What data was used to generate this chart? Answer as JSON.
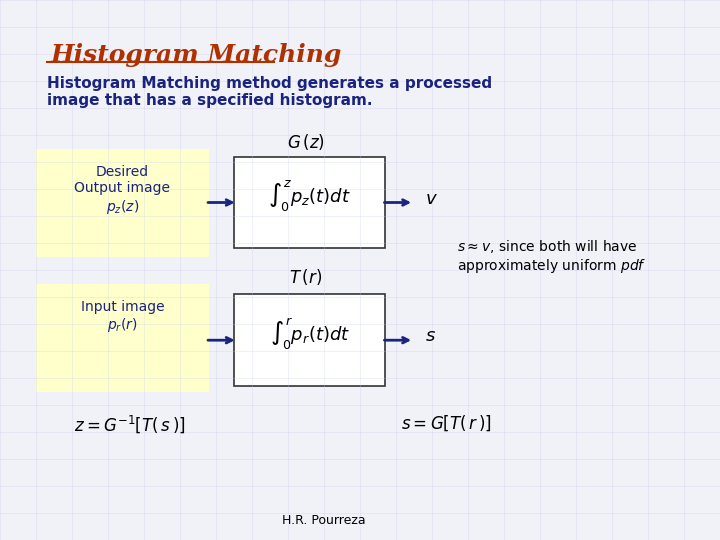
{
  "bg_color": "#e8ecf5",
  "slide_bg": "#f0f2f8",
  "title_text": "Histogram Matching",
  "title_color": "#b03000",
  "subtitle_text": "Histogram Matching method generates a processed\nimage that has a specified histogram.",
  "subtitle_color": "#1a237e",
  "box1_text": "Desired\nOutput image\n$p_z(z)$",
  "box2_text": "Input image\n$p_r(r)$",
  "integral1_text": "$\\int_0^z p_z(t)dt$",
  "integral2_text": "$\\int_0^r p_r(t)dt$",
  "gz_label": "$G\\,(z)$",
  "tr_label": "$T\\,(r)$",
  "v_label": "$v$",
  "s_label1": "$s$",
  "approx_text": "$s \\approx v$, since both will have\napproximately uniform $pdf$",
  "eq1_text": "$z = G^{-1}[T(\\,s\\,)]$",
  "eq2_text": "$s = G[T(\\,r\\,)]$",
  "footer_text": "H.R. Pourreza",
  "box_bg": "#ffffcc",
  "box_border": "#333333",
  "integral_box_bg": "#ffffff",
  "text_dark": "#1a237e",
  "text_black": "#000000"
}
